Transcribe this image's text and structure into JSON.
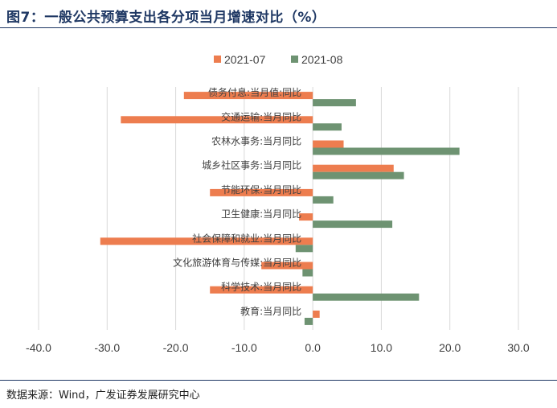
{
  "header": {
    "title": "图7：一般公共预算支出各分项当月增速对比（%）"
  },
  "footer": {
    "source": "数据来源：Wind，广发证券发展研究中心"
  },
  "chart_data": {
    "type": "bar",
    "orientation": "horizontal",
    "title": "",
    "xlabel": "",
    "ylabel": "",
    "xlim": [
      -40,
      30
    ],
    "xticks": [
      -40,
      -30,
      -20,
      -10,
      0,
      10,
      20,
      30
    ],
    "tick_labels": [
      "-40.0",
      "-30.0",
      "-20.0",
      "-10.0",
      "0.0",
      "10.0",
      "20.0",
      "30.0"
    ],
    "grid": "vertical",
    "legend_position": "top-center",
    "categories": [
      "债务付息:当月值:同比",
      "交通运输:当月同比",
      "农林水事务:当月同比",
      "城乡社区事务:当月同比",
      "节能环保:当月同比",
      "卫生健康:当月同比",
      "社会保障和就业:当月同比",
      "文化旅游体育与传媒:当月同比",
      "科学技术:当月同比",
      "教育:当月同比"
    ],
    "series": [
      {
        "name": "2021-07",
        "color": "#ed7d4f",
        "values": [
          -18.8,
          -28.0,
          4.5,
          11.8,
          -15.0,
          -2.0,
          -31.0,
          -7.5,
          -15.0,
          1.0
        ]
      },
      {
        "name": "2021-08",
        "color": "#6e9372",
        "values": [
          6.3,
          4.2,
          21.4,
          13.3,
          3.0,
          11.6,
          -2.5,
          -1.5,
          15.5,
          -1.2
        ]
      }
    ]
  }
}
